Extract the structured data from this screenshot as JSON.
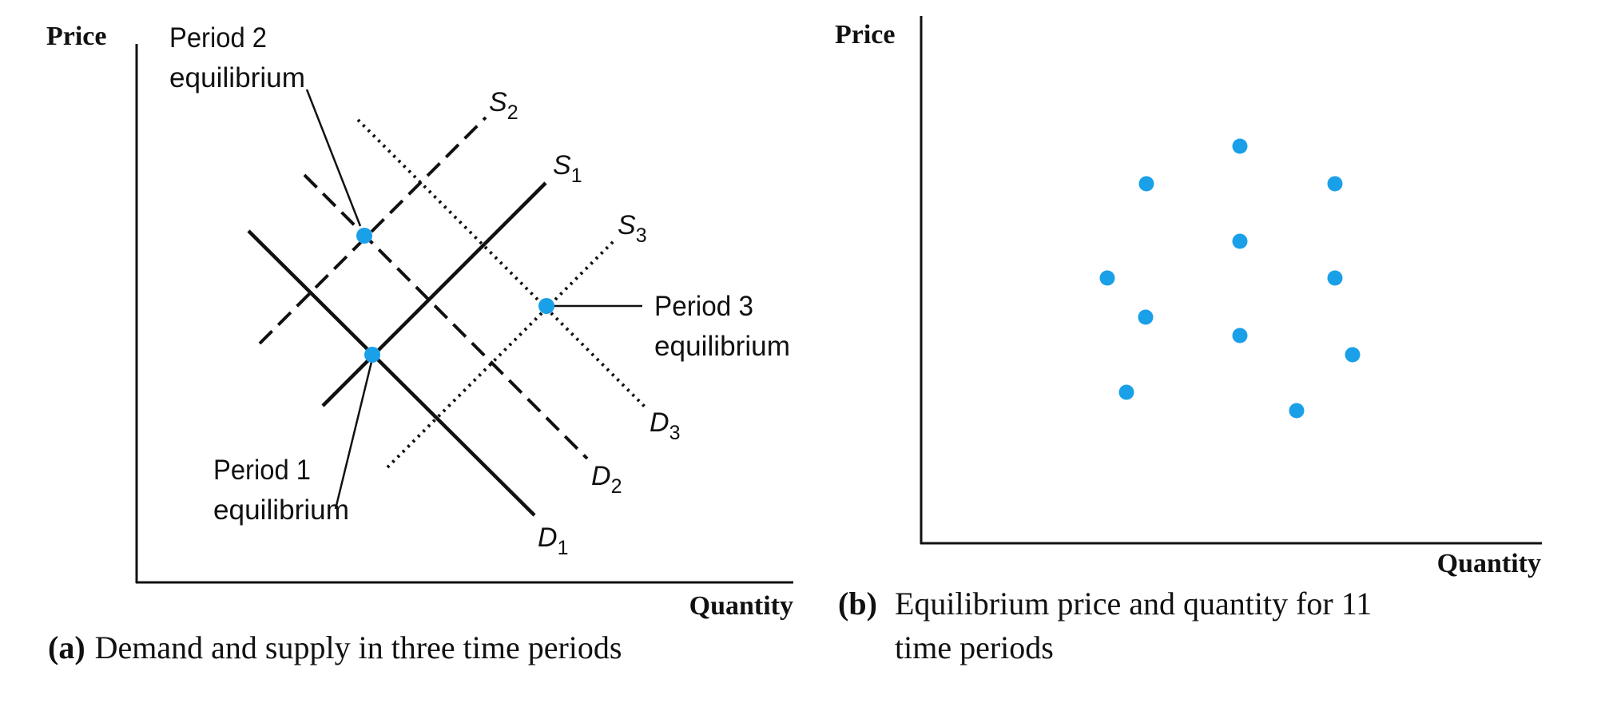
{
  "panel_a": {
    "y_axis_label": "Price",
    "x_axis_label": "Quantity",
    "caption_letter": "(a)",
    "caption_text": "Demand and supply in three time periods",
    "curves": {
      "S2": {
        "letter": "S",
        "sub": "2",
        "style": "dashed"
      },
      "S1": {
        "letter": "S",
        "sub": "1",
        "style": "solid"
      },
      "S3": {
        "letter": "S",
        "sub": "3",
        "style": "dotted"
      },
      "D1": {
        "letter": "D",
        "sub": "1",
        "style": "solid"
      },
      "D2": {
        "letter": "D",
        "sub": "2",
        "style": "dashed"
      },
      "D3": {
        "letter": "D",
        "sub": "3",
        "style": "dotted"
      }
    },
    "annotations": {
      "period2": [
        "Period 2",
        "equilibrium"
      ],
      "period3": [
        "Period 3",
        "equilibrium"
      ],
      "period1": [
        "Period 1",
        "equilibrium"
      ]
    }
  },
  "panel_b": {
    "y_axis_label": "Price",
    "x_axis_label": "Quantity",
    "caption_letter": "(b)",
    "caption_line1": "Equilibrium price and quantity for 11",
    "caption_line2": "time periods",
    "point_count": 11
  },
  "colors": {
    "point": "#1aa0e8",
    "ink": "#111111"
  }
}
